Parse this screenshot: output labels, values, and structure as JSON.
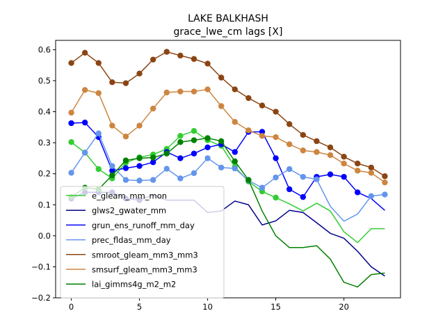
{
  "chart_data": {
    "type": "line",
    "title": "LAKE BALKHASH",
    "subtitle": "grace_lwe_cm lags [X]",
    "xlim": [
      -1.15,
      24.15
    ],
    "ylim": [
      -0.2,
      0.63
    ],
    "xticks": [
      0,
      5,
      10,
      15,
      20
    ],
    "yticks": [
      -0.2,
      -0.1,
      0.0,
      0.1,
      0.2,
      0.3,
      0.4,
      0.5,
      0.6
    ],
    "ytick_labels": [
      "−0.2",
      "−0.1",
      "0.0",
      "0.1",
      "0.2",
      "0.3",
      "0.4",
      "0.5",
      "0.6"
    ],
    "legend_position": "lower-left",
    "x": [
      0,
      1,
      2,
      3,
      4,
      5,
      6,
      7,
      8,
      9,
      10,
      11,
      12,
      13,
      14,
      15,
      16,
      17,
      18,
      19,
      20,
      21,
      22,
      23
    ],
    "series": [
      {
        "name": "e_gleam_mm_mon",
        "color": "#32cd32",
        "values": [
          0.302,
          0.268,
          0.215,
          0.185,
          0.235,
          0.253,
          0.262,
          0.28,
          0.322,
          0.338,
          0.308,
          0.29,
          0.222,
          0.175,
          0.143,
          0.123,
          0.103,
          0.08,
          0.105,
          0.08,
          0.013,
          -0.022,
          0.023,
          0.023
        ],
        "markers": [
          0,
          1,
          2,
          3,
          4,
          5,
          6,
          7,
          8,
          9,
          10,
          11,
          12,
          13,
          14,
          15
        ]
      },
      {
        "name": "glws2_gwater_mm",
        "color": "#00008b",
        "values": [
          0.12,
          0.14,
          0.14,
          0.14,
          0.12,
          0.115,
          0.132,
          0.115,
          0.115,
          0.115,
          0.075,
          0.08,
          0.112,
          0.1,
          0.035,
          0.048,
          0.082,
          0.075,
          0.042,
          0.008,
          -0.008,
          -0.05,
          -0.1,
          -0.13
        ],
        "markers": [
          0,
          1,
          2,
          3,
          4,
          5
        ]
      },
      {
        "name": "grun_ens_runoff_mm_day",
        "color": "#0000ff",
        "values": [
          0.363,
          0.365,
          0.318,
          0.21,
          0.218,
          0.225,
          0.237,
          0.27,
          0.25,
          0.265,
          0.285,
          0.295,
          0.27,
          0.335,
          0.335,
          0.25,
          0.15,
          0.125,
          0.19,
          0.198,
          0.19,
          0.14,
          0.12,
          0.082
        ],
        "markers": [
          0,
          1,
          2,
          3,
          4,
          5,
          6,
          7,
          8,
          9,
          10,
          11,
          12,
          13,
          14,
          15,
          16,
          17,
          18,
          19,
          20,
          21
        ]
      },
      {
        "name": "prec_fldas_mm_day",
        "color": "#6495ed",
        "values": [
          0.203,
          0.268,
          0.33,
          0.225,
          0.18,
          0.178,
          0.18,
          0.216,
          0.185,
          0.202,
          0.25,
          0.22,
          0.217,
          0.178,
          0.155,
          0.188,
          0.215,
          0.19,
          0.182,
          0.095,
          0.047,
          0.07,
          0.128,
          0.133
        ],
        "markers": [
          0,
          1,
          2,
          3,
          4,
          5,
          6,
          7,
          8,
          9,
          10,
          11,
          12,
          13,
          14,
          15,
          16,
          17,
          18,
          22,
          23
        ]
      },
      {
        "name": "smroot_gleam_mm3_mm3",
        "color": "#8b4513",
        "values": [
          0.557,
          0.59,
          0.557,
          0.495,
          0.492,
          0.523,
          0.568,
          0.593,
          0.581,
          0.57,
          0.555,
          0.51,
          0.472,
          0.444,
          0.42,
          0.4,
          0.36,
          0.325,
          0.305,
          0.285,
          0.255,
          0.233,
          0.22,
          0.192
        ],
        "markers": [
          0,
          1,
          2,
          3,
          4,
          5,
          6,
          7,
          8,
          9,
          10,
          11,
          12,
          13,
          14,
          15,
          16,
          17,
          18,
          19,
          20,
          21,
          22,
          23
        ]
      },
      {
        "name": "smsurf_gleam_mm3_mm3",
        "color": "#cd853f",
        "values": [
          0.397,
          0.47,
          0.46,
          0.355,
          0.32,
          0.355,
          0.41,
          0.462,
          0.465,
          0.465,
          0.472,
          0.418,
          0.367,
          0.34,
          0.322,
          0.318,
          0.295,
          0.275,
          0.27,
          0.26,
          0.233,
          0.21,
          0.203,
          0.172
        ],
        "markers": [
          0,
          1,
          2,
          3,
          4,
          5,
          6,
          7,
          8,
          9,
          10,
          11,
          12,
          13,
          14,
          15,
          16,
          17,
          18,
          19,
          20,
          21,
          22,
          23
        ]
      },
      {
        "name": "lai_gimms4g_m2_m2",
        "color": "#008000",
        "values": [
          0.125,
          0.155,
          0.15,
          0.195,
          0.243,
          0.25,
          0.252,
          0.265,
          0.302,
          0.308,
          0.315,
          0.305,
          0.24,
          0.18,
          0.08,
          0.0,
          -0.038,
          -0.038,
          -0.032,
          -0.075,
          -0.15,
          -0.165,
          -0.125,
          -0.12
        ],
        "markers": [
          0,
          1,
          2,
          3,
          4,
          5,
          6,
          7,
          8,
          9,
          10,
          11,
          12,
          13
        ]
      }
    ]
  }
}
